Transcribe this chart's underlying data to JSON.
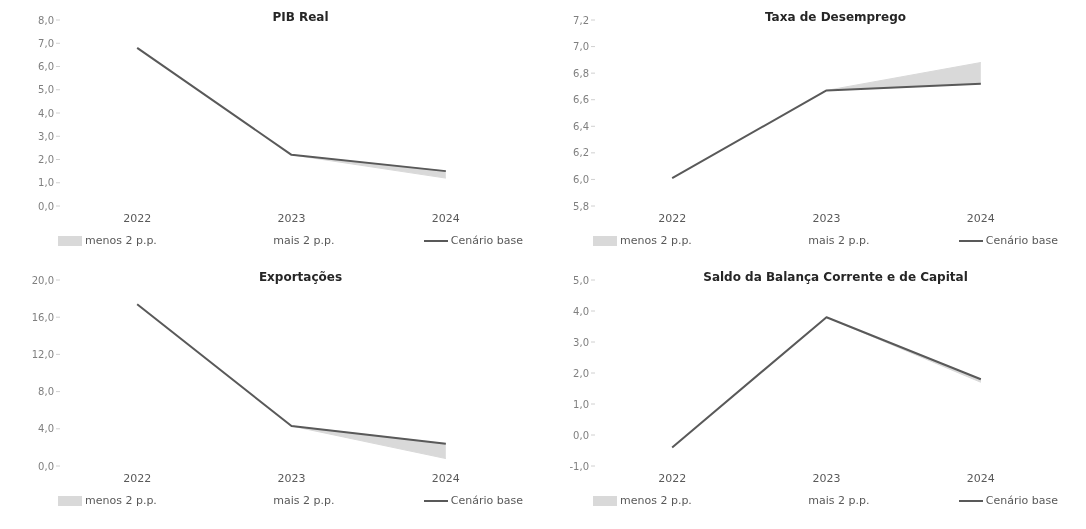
{
  "chart_data": [
    {
      "type": "line",
      "title": "PIB Real",
      "categories": [
        "2022",
        "2023",
        "2024"
      ],
      "ylim": [
        0,
        8
      ],
      "yticks": [
        {
          "value": 0,
          "label": "0,0"
        },
        {
          "value": 1,
          "label": "1,0"
        },
        {
          "value": 2,
          "label": "2,0"
        },
        {
          "value": 3,
          "label": "3,0"
        },
        {
          "value": 4,
          "label": "4,0"
        },
        {
          "value": 5,
          "label": "5,0"
        },
        {
          "value": 6,
          "label": "6,0"
        },
        {
          "value": 7,
          "label": "7,0"
        },
        {
          "value": 8,
          "label": "8,0"
        }
      ],
      "grid": false,
      "legend": "bottom",
      "series": [
        {
          "name": "menos 2 p.p.",
          "type": "area",
          "color": "#d9d9d9",
          "values": [
            null,
            2.2,
            1.2
          ]
        },
        {
          "name": "mais 2 p.p.",
          "type": "area",
          "values": [
            null,
            null,
            null
          ]
        },
        {
          "name": "Cenário base",
          "type": "line",
          "color": "#595959",
          "values": [
            6.8,
            2.2,
            1.5
          ]
        }
      ]
    },
    {
      "type": "line",
      "title": "Taxa de Desemprego",
      "categories": [
        "2022",
        "2023",
        "2024"
      ],
      "ylim": [
        5.8,
        7.2
      ],
      "yticks": [
        {
          "value": 5.8,
          "label": "5,8"
        },
        {
          "value": 6.0,
          "label": "6,0"
        },
        {
          "value": 6.2,
          "label": "6,2"
        },
        {
          "value": 6.4,
          "label": "6,4"
        },
        {
          "value": 6.6,
          "label": "6,6"
        },
        {
          "value": 6.8,
          "label": "6,8"
        },
        {
          "value": 7.0,
          "label": "7,0"
        },
        {
          "value": 7.2,
          "label": "7,2"
        }
      ],
      "grid": false,
      "legend": "bottom",
      "series": [
        {
          "name": "menos 2 p.p.",
          "type": "area",
          "color": "#d9d9d9",
          "values": [
            null,
            6.67,
            6.88
          ]
        },
        {
          "name": "mais 2 p.p.",
          "type": "area",
          "values": [
            null,
            null,
            null
          ]
        },
        {
          "name": "Cenário base",
          "type": "line",
          "color": "#595959",
          "values": [
            6.01,
            6.67,
            6.72
          ]
        }
      ]
    },
    {
      "type": "line",
      "title": "Exportações",
      "categories": [
        "2022",
        "2023",
        "2024"
      ],
      "ylim": [
        0,
        20
      ],
      "yticks": [
        {
          "value": 0,
          "label": "0,0"
        },
        {
          "value": 4,
          "label": "4,0"
        },
        {
          "value": 8,
          "label": "8,0"
        },
        {
          "value": 12,
          "label": "12,0"
        },
        {
          "value": 16,
          "label": "16,0"
        },
        {
          "value": 20,
          "label": "20,0"
        }
      ],
      "grid": false,
      "legend": "bottom",
      "series": [
        {
          "name": "menos 2 p.p.",
          "type": "area",
          "color": "#d9d9d9",
          "values": [
            null,
            4.3,
            0.8
          ]
        },
        {
          "name": "mais 2 p.p.",
          "type": "area",
          "values": [
            null,
            null,
            null
          ]
        },
        {
          "name": "Cenário base",
          "type": "line",
          "color": "#595959",
          "values": [
            17.4,
            4.3,
            2.4
          ]
        }
      ]
    },
    {
      "type": "line",
      "title": "Saldo da Balança Corrente e de Capital",
      "categories": [
        "2022",
        "2023",
        "2024"
      ],
      "ylim": [
        -1,
        5
      ],
      "yticks": [
        {
          "value": -1,
          "label": "-1,0"
        },
        {
          "value": 0,
          "label": "0,0"
        },
        {
          "value": 1,
          "label": "1,0"
        },
        {
          "value": 2,
          "label": "2,0"
        },
        {
          "value": 3,
          "label": "3,0"
        },
        {
          "value": 4,
          "label": "4,0"
        },
        {
          "value": 5,
          "label": "5,0"
        }
      ],
      "grid": false,
      "legend": "bottom",
      "series": [
        {
          "name": "menos 2 p.p.",
          "type": "area",
          "color": "#d9d9d9",
          "values": [
            null,
            3.8,
            1.7
          ]
        },
        {
          "name": "mais 2 p.p.",
          "type": "area",
          "values": [
            null,
            null,
            null
          ]
        },
        {
          "name": "Cenário base",
          "type": "line",
          "color": "#595959",
          "values": [
            -0.4,
            3.8,
            1.8
          ]
        }
      ]
    }
  ]
}
